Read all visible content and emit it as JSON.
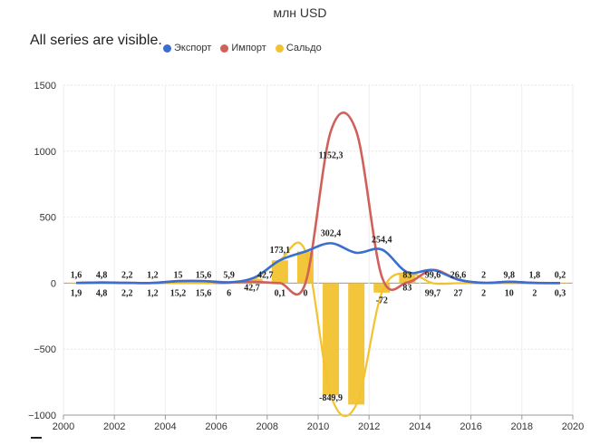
{
  "header": {
    "title": "млн USD",
    "status_text": "All series are visible."
  },
  "legend": [
    {
      "name": "Экспорт",
      "color": "#3a6fcf"
    },
    {
      "name": "Импорт",
      "color": "#d0605a"
    },
    {
      "name": "Сальдо",
      "color": "#f2c230"
    }
  ],
  "chart_data": {
    "type": "line",
    "title": "млн USD",
    "x": [
      2000,
      2001,
      2002,
      2003,
      2004,
      2005,
      2006,
      2007,
      2008,
      2009,
      2010,
      2011,
      2012,
      2013,
      2014,
      2015,
      2016,
      2017,
      2018,
      2019
    ],
    "x_ticks": [
      "2000",
      "2002",
      "2004",
      "2006",
      "2008",
      "2010",
      "2012",
      "2014",
      "2016",
      "2018",
      "2020"
    ],
    "y_ticks": [
      "1500",
      "1000",
      "500",
      "0",
      "−500",
      "−1000"
    ],
    "xlim": [
      2000,
      2020
    ],
    "ylim": [
      -1000,
      1500
    ],
    "series": [
      {
        "name": "Экспорт",
        "type": "line",
        "color": "#3a6fcf",
        "values": [
          1.6,
          4.8,
          2.2,
          1.2,
          15,
          15.6,
          5.9,
          42.7,
          173.1,
          240,
          302.4,
          230,
          254.4,
          83,
          99.6,
          26.6,
          2,
          9.8,
          1.8,
          0.2
        ],
        "labels": [
          "1,6",
          "4,8",
          "2,2",
          "1,2",
          "15",
          "15,6",
          "5,9",
          "42,7",
          "173,1",
          "",
          "302,4",
          "",
          "254,4",
          "83",
          "99,6",
          "26,6",
          "2",
          "9,8",
          "1,8",
          "0,2"
        ]
      },
      {
        "name": "Импорт",
        "type": "line",
        "color": "#d0605a",
        "values": [
          1.9,
          4.8,
          2.2,
          1.2,
          15.2,
          15.6,
          6,
          10,
          0.1,
          0,
          1152.3,
          1150,
          50,
          5,
          99.7,
          27,
          2,
          10,
          2,
          0.3
        ],
        "labels": [
          "1,9",
          "4,8",
          "2,2",
          "1,2",
          "15,2",
          "15,6",
          "6",
          "",
          "0,1",
          "0",
          "1152,3",
          "",
          "",
          "",
          "99,7",
          "27",
          "2",
          "10",
          "2",
          "0,3"
        ]
      },
      {
        "name": "Сальдо",
        "type": "bar",
        "color": "#f2c230",
        "values": [
          -0.3,
          0,
          0,
          0,
          -0.2,
          0,
          -0.1,
          32.7,
          173,
          240,
          -849.9,
          -920,
          -72,
          78,
          -0.1,
          -0.4,
          0,
          -0.2,
          -0.2,
          -0.1
        ],
        "labels": [
          "",
          "",
          "",
          "",
          "",
          "",
          "",
          "",
          "",
          "",
          "-849,9",
          "",
          "-72",
          "",
          "",
          "",
          "",
          "",
          "",
          ""
        ]
      }
    ]
  }
}
